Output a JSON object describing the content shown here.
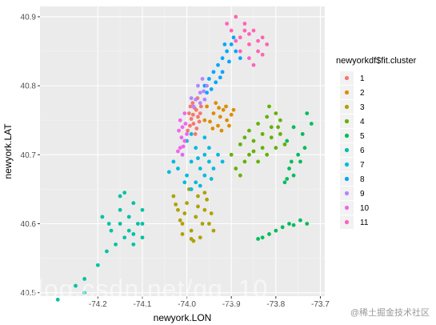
{
  "chart_data": {
    "type": "scatter",
    "title": "",
    "xlabel": "newyork.LON",
    "ylabel": "newyork.LAT",
    "xlim": [
      -74.33,
      -73.69
    ],
    "ylim": [
      40.495,
      40.915
    ],
    "x_ticks": [
      {
        "value": -74.2,
        "label": "-74.2"
      },
      {
        "value": -74.1,
        "label": "-74.1"
      },
      {
        "value": -74.0,
        "label": "-74.0"
      },
      {
        "value": -73.9,
        "label": "-73.9"
      },
      {
        "value": -73.8,
        "label": "-73.8"
      },
      {
        "value": -73.7,
        "label": "-73.7"
      }
    ],
    "y_ticks": [
      {
        "value": 40.5,
        "label": "40.5"
      },
      {
        "value": 40.6,
        "label": "40.6"
      },
      {
        "value": 40.7,
        "label": "40.7"
      },
      {
        "value": 40.8,
        "label": "40.8"
      },
      {
        "value": 40.9,
        "label": "40.9"
      }
    ],
    "grid": true,
    "panel_background": "#ebebeb",
    "legend": {
      "title": "newyorkdf$fit.cluster",
      "position": "right"
    },
    "series": [
      {
        "name": "1",
        "color": "#F8766D",
        "points": [
          [
            -73.985,
            40.745
          ],
          [
            -73.99,
            40.752
          ],
          [
            -73.978,
            40.738
          ],
          [
            -73.995,
            40.76
          ],
          [
            -73.972,
            40.748
          ],
          [
            -73.983,
            40.768
          ],
          [
            -73.998,
            40.735
          ],
          [
            -73.97,
            40.76
          ],
          [
            -73.987,
            40.775
          ],
          [
            -73.976,
            40.782
          ],
          [
            -73.993,
            40.742
          ],
          [
            -73.981,
            40.73
          ],
          [
            -73.968,
            40.77
          ],
          [
            -73.986,
            40.758
          ],
          [
            -73.975,
            40.755
          ],
          [
            -73.992,
            40.77
          ],
          [
            -73.979,
            40.765
          ]
        ]
      },
      {
        "name": "2",
        "color": "#DB8E00",
        "points": [
          [
            -73.955,
            40.77
          ],
          [
            -73.94,
            40.76
          ],
          [
            -73.925,
            40.755
          ],
          [
            -73.91,
            40.75
          ],
          [
            -73.93,
            40.742
          ],
          [
            -73.948,
            40.748
          ],
          [
            -73.918,
            40.765
          ],
          [
            -73.9,
            40.758
          ],
          [
            -73.935,
            40.775
          ],
          [
            -73.905,
            40.742
          ],
          [
            -73.895,
            40.765
          ],
          [
            -73.96,
            40.75
          ],
          [
            -73.922,
            40.735
          ],
          [
            -73.942,
            40.738
          ],
          [
            -73.912,
            40.77
          ],
          [
            -73.928,
            40.768
          ]
        ]
      },
      {
        "name": "3",
        "color": "#AEA200",
        "points": [
          [
            -74.01,
            40.6
          ],
          [
            -73.99,
            40.59
          ],
          [
            -73.97,
            40.58
          ],
          [
            -73.95,
            40.6
          ],
          [
            -73.96,
            40.62
          ],
          [
            -73.98,
            40.61
          ],
          [
            -74.02,
            40.62
          ],
          [
            -74.0,
            40.63
          ],
          [
            -73.975,
            40.64
          ],
          [
            -73.955,
            40.635
          ],
          [
            -74.03,
            40.64
          ],
          [
            -73.985,
            40.575
          ],
          [
            -73.965,
            40.6
          ],
          [
            -74.005,
            40.615
          ],
          [
            -73.945,
            40.615
          ],
          [
            -74.015,
            40.605
          ],
          [
            -73.995,
            40.65
          ],
          [
            -73.975,
            40.625
          ],
          [
            -73.99,
            40.578
          ],
          [
            -73.94,
            40.59
          ],
          [
            -74.01,
            40.585
          ],
          [
            -73.96,
            40.645
          ],
          [
            -74.025,
            40.628
          ]
        ]
      },
      {
        "name": "4",
        "color": "#64B200",
        "points": [
          [
            -73.88,
            40.715
          ],
          [
            -73.86,
            40.7
          ],
          [
            -73.84,
            40.69
          ],
          [
            -73.82,
            40.7
          ],
          [
            -73.8,
            40.71
          ],
          [
            -73.78,
            40.715
          ],
          [
            -73.85,
            40.72
          ],
          [
            -73.83,
            40.73
          ],
          [
            -73.81,
            40.74
          ],
          [
            -73.79,
            40.75
          ],
          [
            -73.82,
            40.755
          ],
          [
            -73.8,
            40.76
          ],
          [
            -73.87,
            40.69
          ],
          [
            -73.89,
            40.68
          ],
          [
            -73.9,
            40.7
          ],
          [
            -73.85,
            40.705
          ],
          [
            -73.83,
            40.71
          ],
          [
            -73.81,
            40.725
          ],
          [
            -73.84,
            40.745
          ],
          [
            -73.86,
            40.735
          ],
          [
            -73.79,
            40.73
          ],
          [
            -73.88,
            40.67
          ],
          [
            -73.87,
            40.725
          ],
          [
            -73.815,
            40.77
          ],
          [
            -73.795,
            40.74
          ]
        ]
      },
      {
        "name": "5",
        "color": "#00BD5C",
        "points": [
          [
            -73.76,
            40.74
          ],
          [
            -73.74,
            40.73
          ],
          [
            -73.75,
            40.7
          ],
          [
            -73.77,
            40.68
          ],
          [
            -73.76,
            40.67
          ],
          [
            -73.78,
            40.66
          ],
          [
            -73.83,
            40.58
          ],
          [
            -73.815,
            40.585
          ],
          [
            -73.8,
            40.59
          ],
          [
            -73.785,
            40.595
          ],
          [
            -73.77,
            40.6
          ],
          [
            -73.745,
            40.605
          ],
          [
            -73.73,
            40.6
          ],
          [
            -73.72,
            40.745
          ],
          [
            -73.735,
            40.71
          ],
          [
            -73.765,
            40.69
          ],
          [
            -73.745,
            40.69
          ],
          [
            -73.775,
            40.665
          ],
          [
            -73.84,
            40.578
          ],
          [
            -73.76,
            40.598
          ],
          [
            -73.73,
            40.76
          ],
          [
            -73.775,
            40.72
          ]
        ]
      },
      {
        "name": "6",
        "color": "#00C1A7",
        "points": [
          [
            -74.15,
            40.64
          ],
          [
            -74.12,
            40.63
          ],
          [
            -74.1,
            40.62
          ],
          [
            -74.13,
            40.61
          ],
          [
            -74.15,
            40.6
          ],
          [
            -74.17,
            40.59
          ],
          [
            -74.14,
            40.58
          ],
          [
            -74.12,
            40.57
          ],
          [
            -74.1,
            40.58
          ],
          [
            -74.18,
            40.56
          ],
          [
            -74.2,
            40.54
          ],
          [
            -74.23,
            40.52
          ],
          [
            -74.25,
            40.51
          ],
          [
            -74.23,
            40.5
          ],
          [
            -74.29,
            40.49
          ],
          [
            -74.15,
            40.62
          ],
          [
            -74.11,
            40.6
          ],
          [
            -74.13,
            40.59
          ],
          [
            -74.16,
            40.57
          ],
          [
            -74.19,
            40.61
          ],
          [
            -74.14,
            40.645
          ],
          [
            -74.1,
            40.6
          ],
          [
            -74.175,
            40.6
          ],
          [
            -74.12,
            40.585
          ]
        ]
      },
      {
        "name": "7",
        "color": "#00BADE",
        "points": [
          [
            -74.0,
            40.72
          ],
          [
            -73.98,
            40.71
          ],
          [
            -73.96,
            40.7
          ],
          [
            -73.95,
            40.69
          ],
          [
            -73.97,
            40.68
          ],
          [
            -73.99,
            40.69
          ],
          [
            -74.01,
            40.7
          ],
          [
            -74.02,
            40.68
          ],
          [
            -74.0,
            40.67
          ],
          [
            -73.98,
            40.66
          ],
          [
            -73.96,
            40.67
          ],
          [
            -73.94,
            40.68
          ],
          [
            -73.93,
            40.7
          ],
          [
            -73.92,
            40.69
          ],
          [
            -74.03,
            40.69
          ],
          [
            -73.99,
            40.65
          ],
          [
            -73.97,
            40.655
          ],
          [
            -73.95,
            40.71
          ],
          [
            -73.99,
            40.73
          ],
          [
            -73.96,
            40.725
          ],
          [
            -74.04,
            40.675
          ],
          [
            -73.945,
            40.665
          ],
          [
            -74.005,
            40.66
          ],
          [
            -73.975,
            40.695
          ]
        ]
      },
      {
        "name": "8",
        "color": "#00A6FF",
        "points": [
          [
            -73.96,
            40.8
          ],
          [
            -73.95,
            40.81
          ],
          [
            -73.94,
            40.82
          ],
          [
            -73.93,
            40.83
          ],
          [
            -73.92,
            40.84
          ],
          [
            -73.91,
            40.85
          ],
          [
            -73.9,
            40.86
          ],
          [
            -73.89,
            40.85
          ],
          [
            -73.92,
            40.82
          ],
          [
            -73.935,
            40.805
          ],
          [
            -73.905,
            40.835
          ],
          [
            -73.945,
            40.795
          ],
          [
            -73.88,
            40.84
          ],
          [
            -73.895,
            40.87
          ],
          [
            -73.915,
            40.86
          ],
          [
            -73.925,
            40.812
          ],
          [
            -73.955,
            40.79
          ]
        ]
      },
      {
        "name": "9",
        "color": "#B385FF",
        "points": [
          [
            -73.98,
            40.78
          ],
          [
            -73.97,
            40.79
          ],
          [
            -73.96,
            40.78
          ],
          [
            -73.975,
            40.8
          ],
          [
            -73.965,
            40.81
          ],
          [
            -73.985,
            40.77
          ],
          [
            -73.97,
            40.775
          ],
          [
            -73.955,
            40.8
          ],
          [
            -73.99,
            40.782
          ],
          [
            -73.962,
            40.792
          ]
        ]
      },
      {
        "name": "10",
        "color": "#EF67EB",
        "points": [
          [
            -74.01,
            40.74
          ],
          [
            -74.0,
            40.73
          ],
          [
            -74.005,
            40.72
          ],
          [
            -74.015,
            40.71
          ],
          [
            -74.01,
            40.7
          ],
          [
            -74.015,
            40.75
          ],
          [
            -74.005,
            40.76
          ],
          [
            -74.012,
            40.725
          ],
          [
            -74.003,
            40.745
          ],
          [
            -74.018,
            40.735
          ],
          [
            -74.008,
            40.712
          ],
          [
            -74.02,
            40.705
          ]
        ]
      },
      {
        "name": "11",
        "color": "#FF63B6",
        "points": [
          [
            -73.9,
            40.88
          ],
          [
            -73.88,
            40.87
          ],
          [
            -73.86,
            40.86
          ],
          [
            -73.85,
            40.88
          ],
          [
            -73.87,
            40.89
          ],
          [
            -73.89,
            40.9
          ],
          [
            -73.88,
            40.85
          ],
          [
            -73.86,
            40.84
          ],
          [
            -73.84,
            40.85
          ],
          [
            -73.83,
            40.87
          ],
          [
            -73.82,
            40.86
          ],
          [
            -73.85,
            40.83
          ],
          [
            -73.91,
            40.89
          ],
          [
            -73.87,
            40.88
          ],
          [
            -73.83,
            40.845
          ],
          [
            -73.86,
            40.875
          ],
          [
            -73.89,
            40.865
          ],
          [
            -73.84,
            40.865
          ]
        ]
      }
    ]
  },
  "watermarks": {
    "main": "blog.csdn.net/qq_10",
    "corner": "@稀土掘金技术社区"
  }
}
